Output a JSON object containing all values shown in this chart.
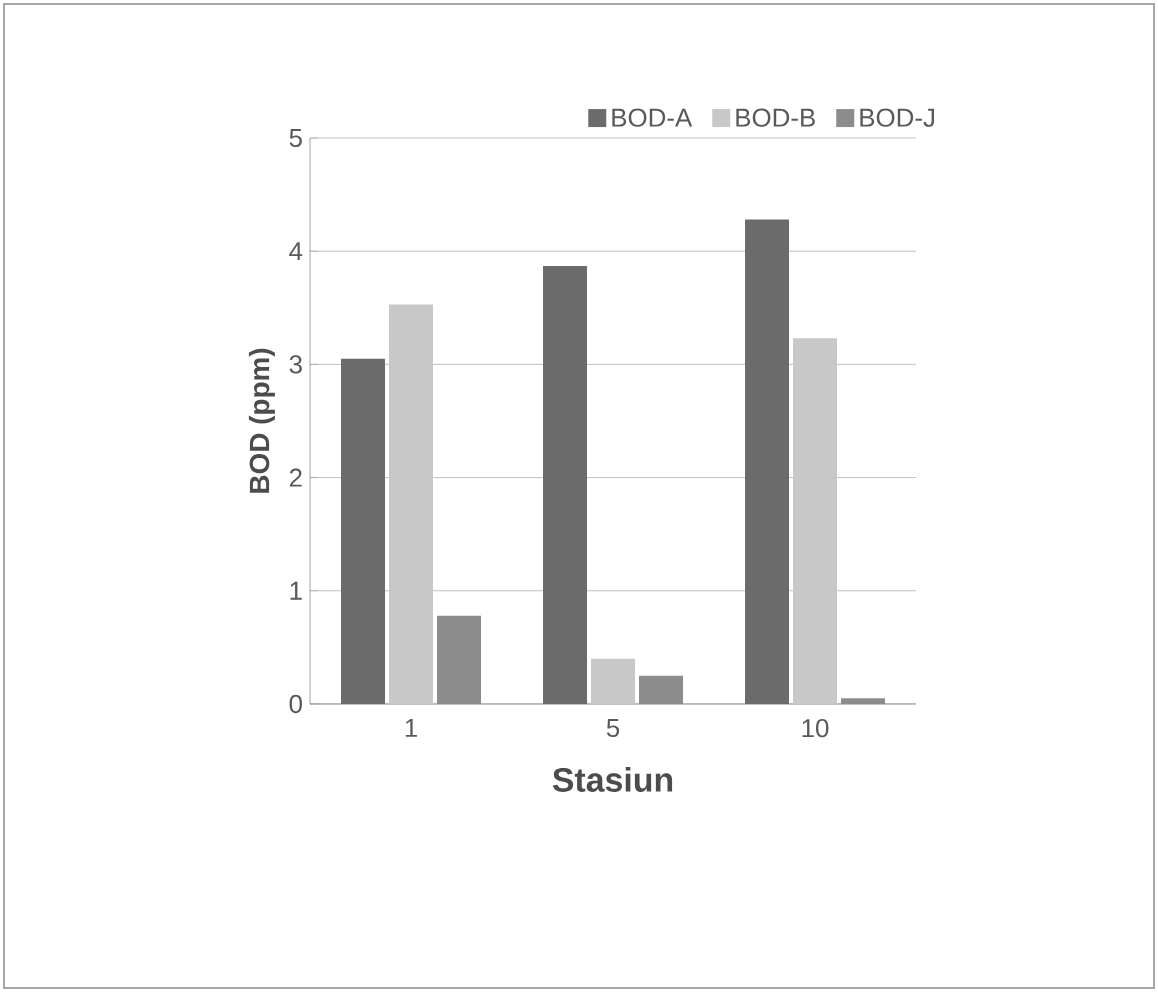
{
  "chart_data": {
    "type": "bar",
    "xlabel": "Stasiun",
    "ylabel": "BOD (ppm)",
    "categories": [
      "1",
      "5",
      "10"
    ],
    "series": [
      {
        "name": "BOD-A",
        "color": "#6b6b6b",
        "values": [
          3.05,
          3.87,
          4.28
        ]
      },
      {
        "name": "BOD-B",
        "color": "#c8c8c8",
        "values": [
          3.53,
          0.4,
          3.23
        ]
      },
      {
        "name": "BOD-J",
        "color": "#8c8c8c",
        "values": [
          0.78,
          0.25,
          0.05
        ]
      }
    ],
    "ylim": [
      0,
      5
    ],
    "yticks": [
      0,
      1,
      2,
      3,
      4,
      5
    ],
    "grid": "y",
    "legend": "top right"
  }
}
